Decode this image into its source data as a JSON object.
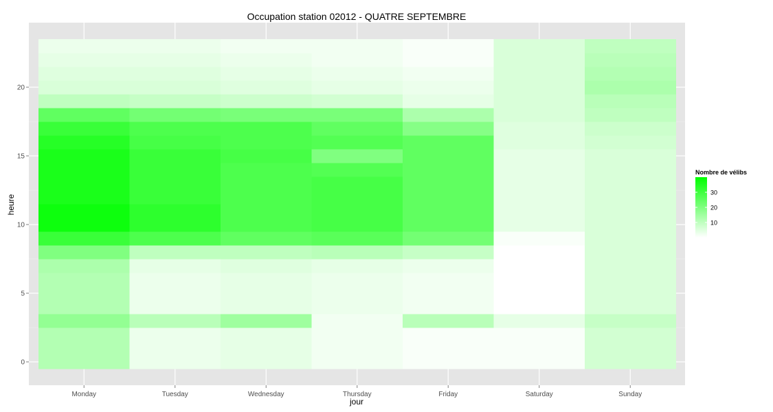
{
  "chart_data": {
    "type": "heatmap",
    "title": "Occupation station 02012 - QUATRE SEPTEMBRE",
    "xlabel": "jour",
    "ylabel": "heure",
    "categories": [
      "Monday",
      "Tuesday",
      "Wednesday",
      "Thursday",
      "Friday",
      "Saturday",
      "Sunday"
    ],
    "y_hours": [
      0,
      1,
      2,
      3,
      4,
      5,
      6,
      7,
      8,
      9,
      10,
      11,
      12,
      13,
      14,
      15,
      16,
      17,
      18,
      19,
      20,
      21,
      22,
      23
    ],
    "ylim": [
      -0.5,
      23.5
    ],
    "y_ticks": [
      0,
      5,
      10,
      15,
      20
    ],
    "y_tick_labels": [
      "0",
      "5",
      "10",
      "15",
      "20"
    ],
    "values": [
      [
        12,
        3,
        4,
        2,
        1,
        1,
        7
      ],
      [
        12,
        3,
        4,
        2,
        1,
        1,
        7
      ],
      [
        12,
        3,
        4,
        2,
        1,
        1,
        7
      ],
      [
        17,
        11,
        15,
        2,
        11,
        4,
        9
      ],
      [
        12,
        3,
        4,
        3,
        2,
        0,
        6
      ],
      [
        12,
        3,
        4,
        3,
        2,
        0,
        6
      ],
      [
        12,
        3,
        4,
        3,
        2,
        0,
        6
      ],
      [
        13,
        4,
        5,
        4,
        3,
        0,
        6
      ],
      [
        20,
        10,
        10,
        11,
        9,
        0,
        6
      ],
      [
        31,
        28,
        25,
        26,
        22,
        1,
        6
      ],
      [
        38,
        33,
        28,
        29,
        25,
        4,
        6
      ],
      [
        38,
        33,
        28,
        29,
        25,
        4,
        6
      ],
      [
        36,
        31,
        28,
        29,
        25,
        4,
        6
      ],
      [
        36,
        31,
        28,
        29,
        25,
        4,
        6
      ],
      [
        36,
        31,
        28,
        27,
        25,
        4,
        6
      ],
      [
        36,
        31,
        29,
        20,
        25,
        4,
        6
      ],
      [
        34,
        29,
        28,
        27,
        25,
        5,
        7
      ],
      [
        31,
        28,
        28,
        25,
        19,
        5,
        8
      ],
      [
        25,
        22,
        21,
        21,
        13,
        6,
        10
      ],
      [
        10,
        9,
        8,
        7,
        4,
        6,
        11
      ],
      [
        6,
        6,
        5,
        4,
        3,
        6,
        13
      ],
      [
        5,
        5,
        4,
        3,
        2,
        6,
        12
      ],
      [
        4,
        4,
        3,
        2,
        1,
        6,
        11
      ],
      [
        3,
        3,
        2,
        2,
        1,
        6,
        10
      ]
    ],
    "legend": {
      "title": "Nombre de vélibs",
      "ticks": [
        10,
        20,
        30
      ],
      "tick_labels": [
        "10",
        "20",
        "30"
      ],
      "range": [
        0,
        40
      ],
      "placement": "right"
    },
    "colors": {
      "low": "#ffffff",
      "high": "#00ff00",
      "panel": "#e5e5e5",
      "grid": "#ffffff"
    },
    "grid": true
  }
}
